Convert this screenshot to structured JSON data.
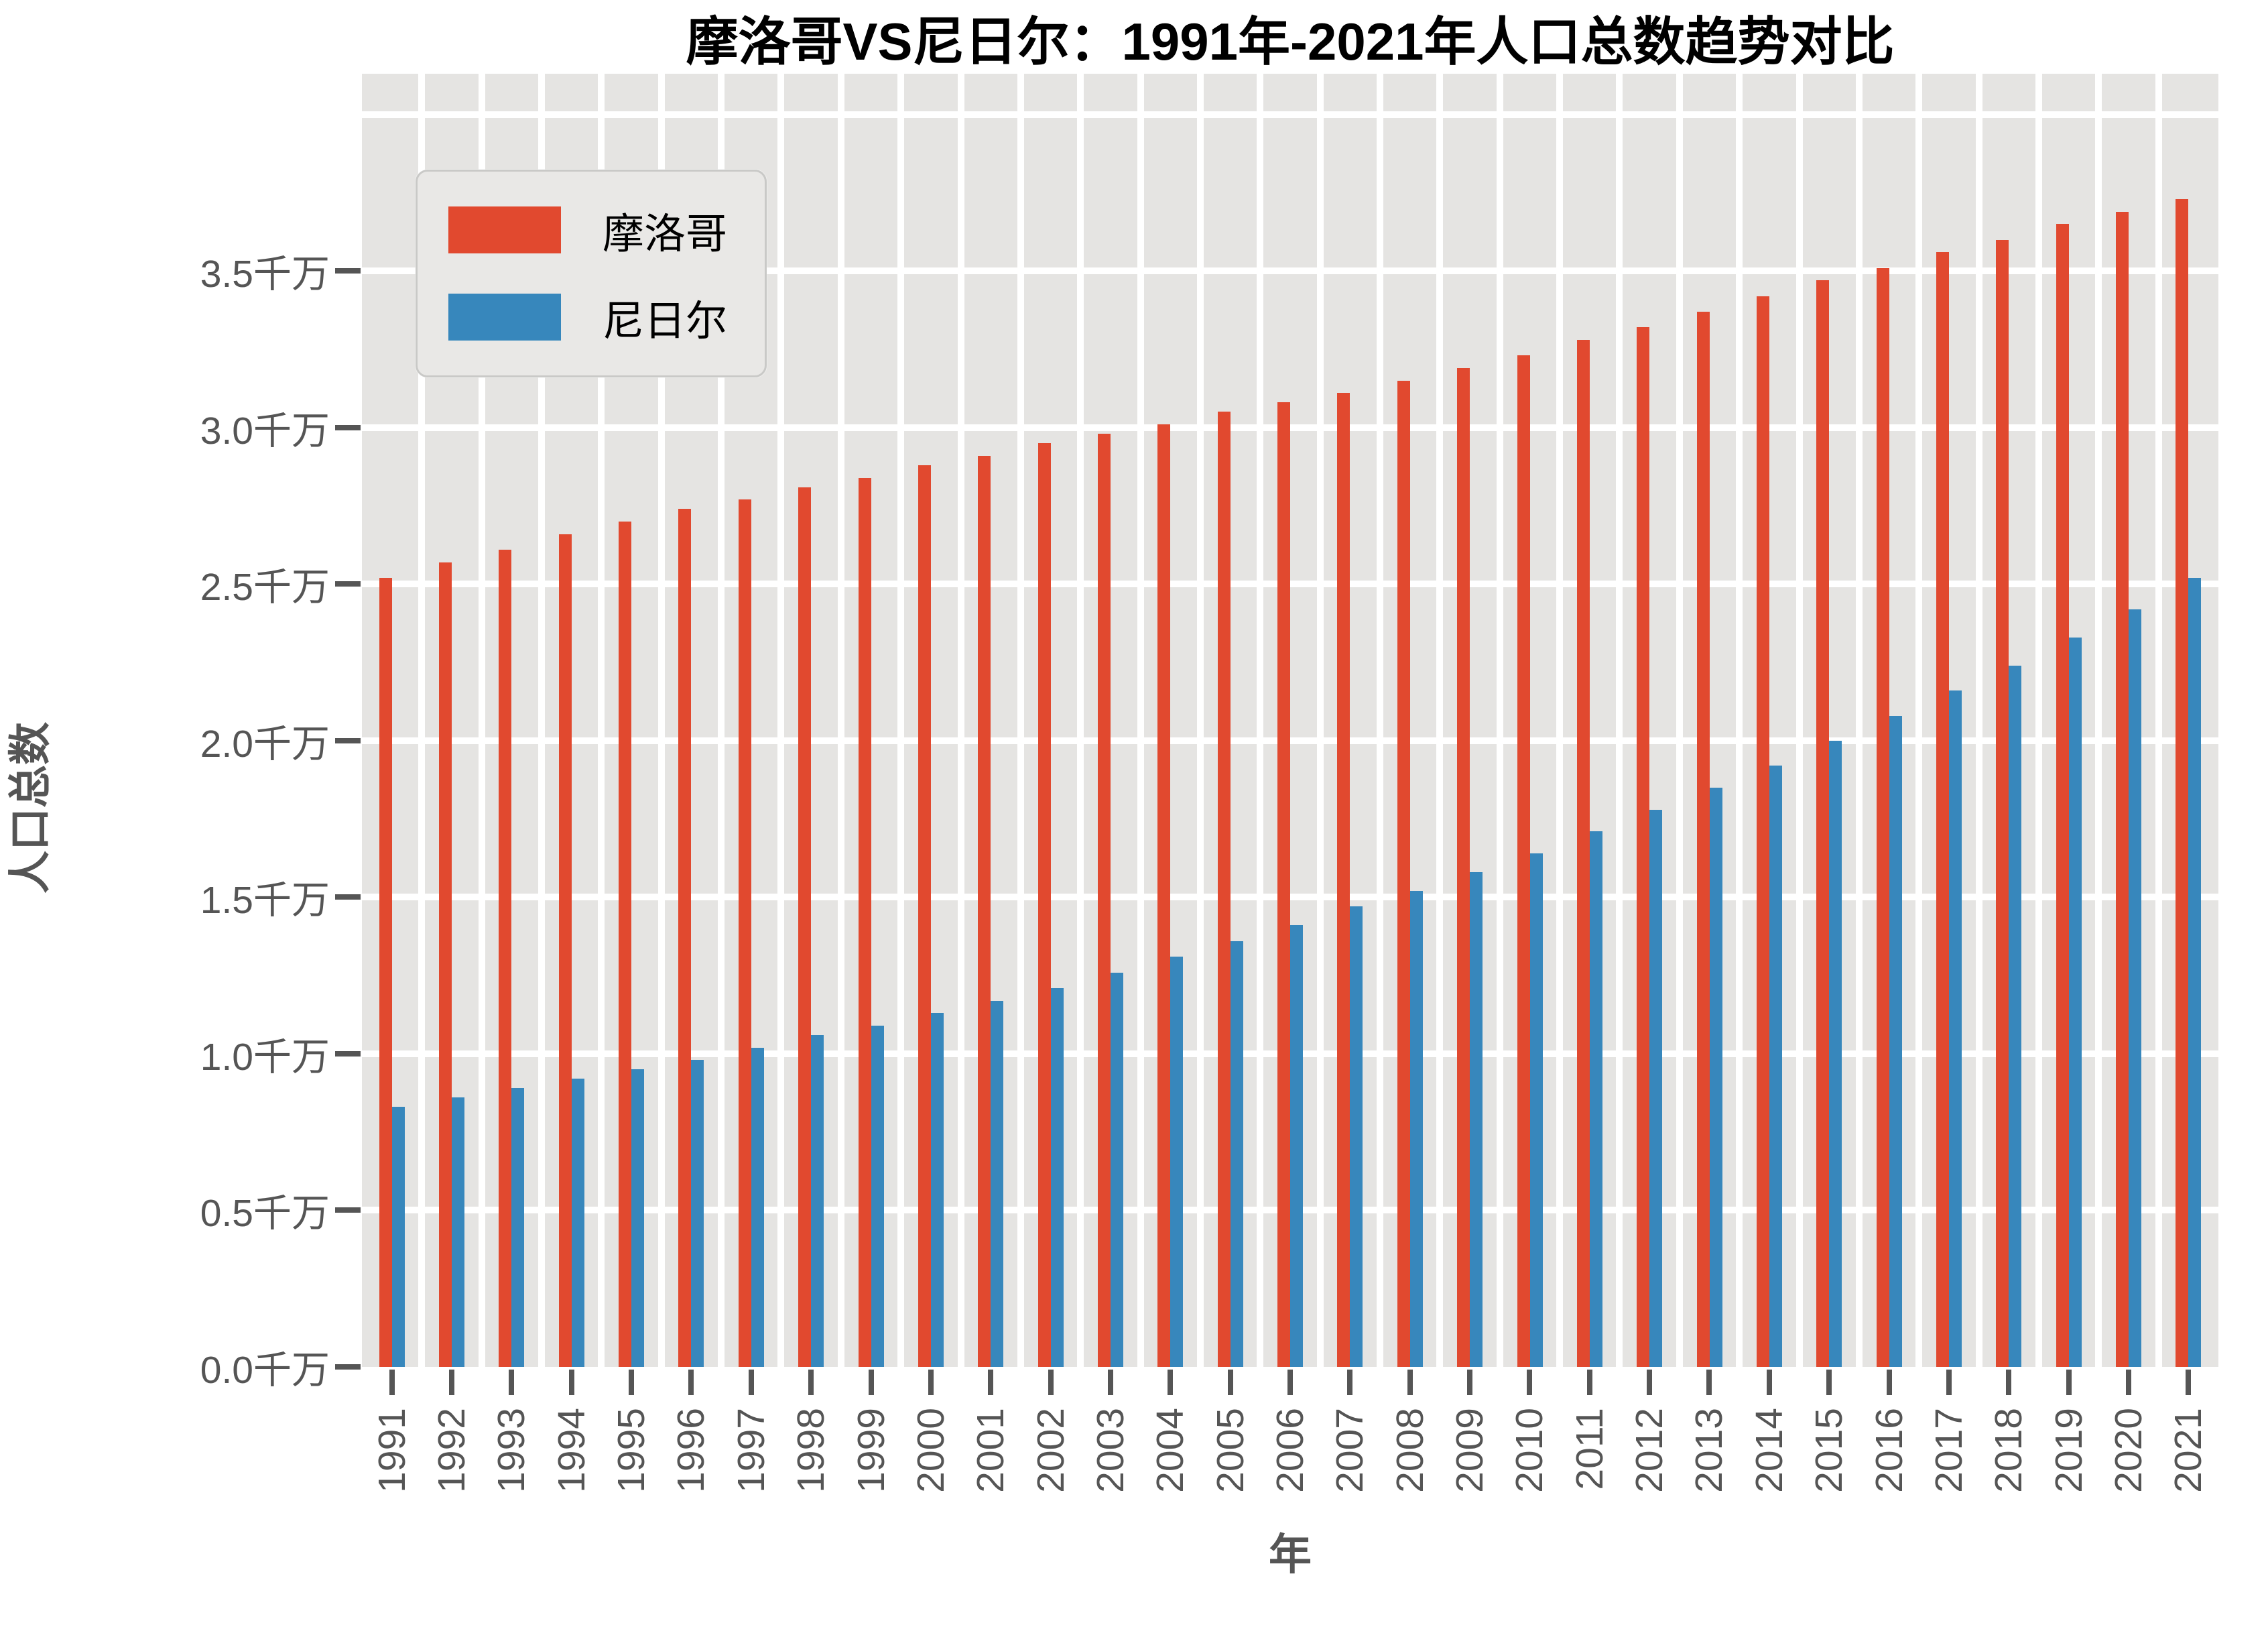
{
  "chart_data": {
    "type": "bar",
    "title": "摩洛哥VS尼日尔：1991年-2021年人口总数趋势对比",
    "xlabel": "年",
    "ylabel": "人口总数",
    "unit": "千万",
    "categories": [
      "1991",
      "1992",
      "1993",
      "1994",
      "1995",
      "1996",
      "1997",
      "1998",
      "1999",
      "2000",
      "2001",
      "2002",
      "2003",
      "2004",
      "2005",
      "2006",
      "2007",
      "2008",
      "2009",
      "2010",
      "2011",
      "2012",
      "2013",
      "2014",
      "2015",
      "2016",
      "2017",
      "2018",
      "2019",
      "2020",
      "2021"
    ],
    "series": [
      {
        "key": "morocco",
        "label": "摩洛哥",
        "color": "#E1492F",
        "values": [
          2.52,
          2.57,
          2.61,
          2.66,
          2.7,
          2.74,
          2.77,
          2.81,
          2.84,
          2.88,
          2.91,
          2.95,
          2.98,
          3.01,
          3.05,
          3.08,
          3.11,
          3.15,
          3.19,
          3.23,
          3.28,
          3.32,
          3.37,
          3.42,
          3.47,
          3.51,
          3.56,
          3.6,
          3.65,
          3.69,
          3.73
        ]
      },
      {
        "key": "niger",
        "label": "尼日尔",
        "color": "#3787BC",
        "values": [
          0.83,
          0.86,
          0.89,
          0.92,
          0.95,
          0.98,
          1.02,
          1.06,
          1.09,
          1.13,
          1.17,
          1.21,
          1.26,
          1.31,
          1.36,
          1.41,
          1.47,
          1.52,
          1.58,
          1.64,
          1.71,
          1.78,
          1.85,
          1.92,
          2.0,
          2.08,
          2.16,
          2.24,
          2.33,
          2.42,
          2.52
        ]
      }
    ],
    "yticks": [
      {
        "value": 0.0,
        "label": "0.0千万"
      },
      {
        "value": 0.5,
        "label": "0.5千万"
      },
      {
        "value": 1.0,
        "label": "1.0千万"
      },
      {
        "value": 1.5,
        "label": "1.5千万"
      },
      {
        "value": 2.0,
        "label": "2.0千万"
      },
      {
        "value": 2.5,
        "label": "2.5千万"
      },
      {
        "value": 3.0,
        "label": "3.0千万"
      },
      {
        "value": 3.5,
        "label": "3.5千万"
      }
    ],
    "gridline_values": [
      0.5,
      1.0,
      1.5,
      2.0,
      2.5,
      3.0,
      3.5,
      4.0
    ],
    "ylim": [
      0,
      4.13
    ],
    "legend_position": "upper-left",
    "grid": true,
    "plot_background": "#E5E4E2",
    "gridline_color": "#FFFFFF",
    "tick_color": "#555555",
    "title_color": "#000000"
  }
}
